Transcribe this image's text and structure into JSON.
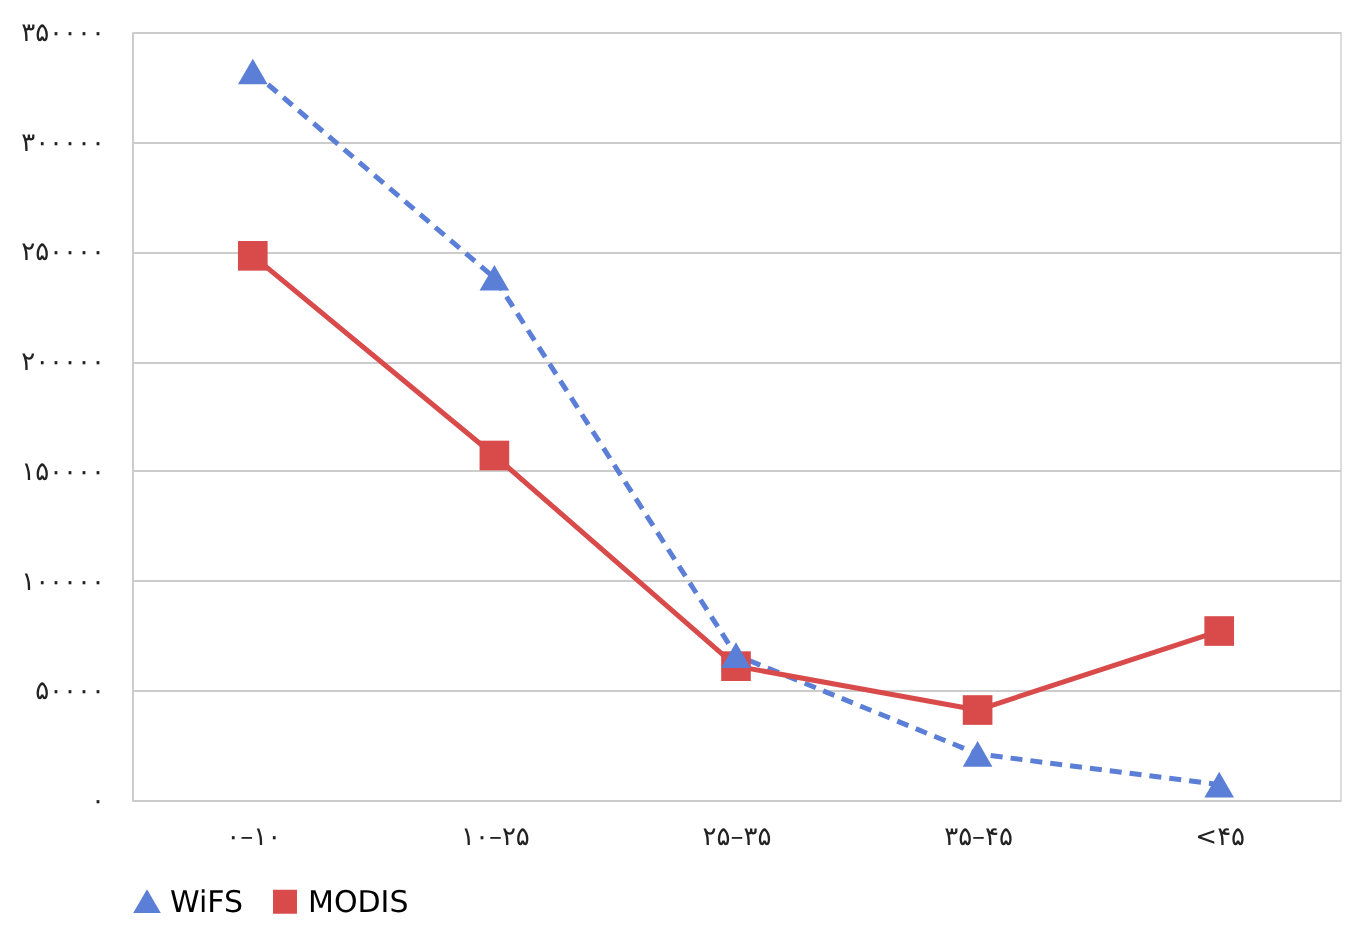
{
  "chart_data": {
    "type": "line",
    "categories": [
      "۰–۱۰",
      "۱۰–۲۵",
      "۲۵–۳۵",
      "۳۵–۴۵",
      "<۴۵"
    ],
    "series": [
      {
        "name": "WiFS",
        "color": "#5b7fd6",
        "values": [
          332000,
          238000,
          66000,
          21000,
          7000
        ],
        "marker": "triangle",
        "line_style": "dashed"
      },
      {
        "name": "MODIS",
        "color": "#d94b4b",
        "values": [
          248000,
          157000,
          61000,
          41000,
          77000
        ],
        "marker": "square",
        "line_style": "solid"
      }
    ],
    "ylim": [
      0,
      350000
    ],
    "yticks": [
      {
        "value": 0,
        "label": "۰"
      },
      {
        "value": 50000,
        "label": "۵۰۰۰۰"
      },
      {
        "value": 100000,
        "label": "۱۰۰۰۰۰"
      },
      {
        "value": 150000,
        "label": "۱۵۰۰۰۰"
      },
      {
        "value": 200000,
        "label": "۲۰۰۰۰۰"
      },
      {
        "value": 250000,
        "label": "۲۵۰۰۰۰"
      },
      {
        "value": 300000,
        "label": "۳۰۰۰۰۰"
      },
      {
        "value": 350000,
        "label": "۳۵۰۰۰۰"
      }
    ],
    "grid": "y",
    "legend": "bottom"
  }
}
